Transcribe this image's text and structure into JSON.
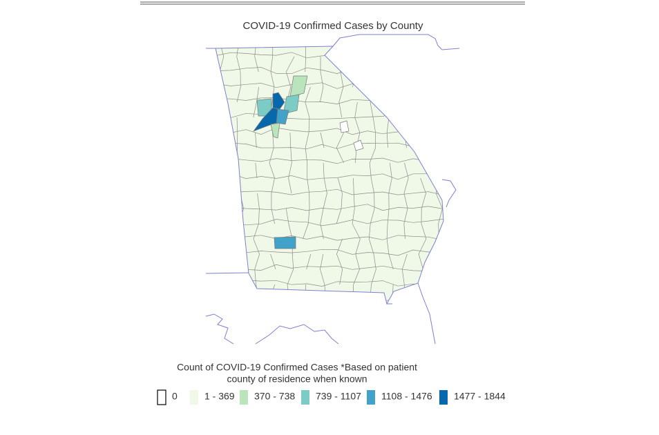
{
  "title": "COVID-19 Confirmed Cases by County",
  "legend": {
    "title_lines": [
      "Count of COVID-19 Confirmed Cases *Based on patient",
      "county of residence when known"
    ],
    "items": [
      {
        "label": "0",
        "color": "#ffffff"
      },
      {
        "label": "1 - 369",
        "color": "#f0f9e8"
      },
      {
        "label": "370 - 738",
        "color": "#bae4bc"
      },
      {
        "label": "739 - 1107",
        "color": "#7bccc4"
      },
      {
        "label": "1108 - 1476",
        "color": "#43a2ca"
      },
      {
        "label": "1477 - 1844",
        "color": "#0868ac"
      }
    ]
  }
}
